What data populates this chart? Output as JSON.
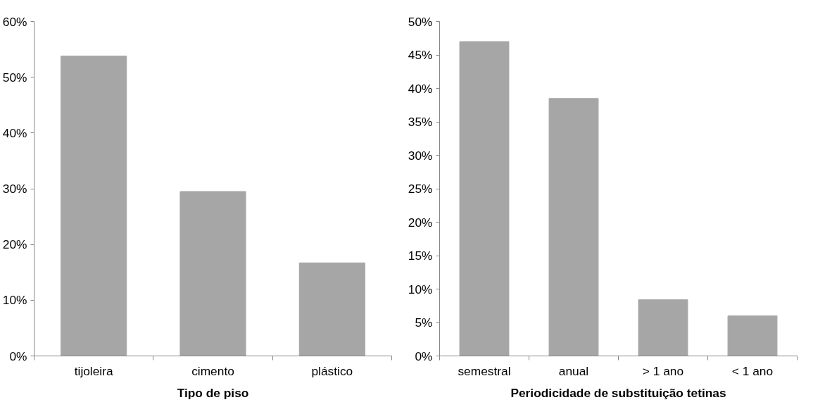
{
  "chart_data": [
    {
      "type": "bar",
      "xlabel": "Tipo de piso",
      "categories": [
        "tijoleira",
        "cimento",
        "plástico"
      ],
      "values": [
        53.8,
        29.5,
        16.7
      ],
      "color": "#a6a6a6",
      "ylim": [
        0,
        60
      ],
      "yticks": [
        {
          "value": 0,
          "label": "0%"
        },
        {
          "value": 10,
          "label": "10%"
        },
        {
          "value": 20,
          "label": "20%"
        },
        {
          "value": 30,
          "label": "30%"
        },
        {
          "value": 40,
          "label": "40%"
        },
        {
          "value": 50,
          "label": "50%"
        },
        {
          "value": 60,
          "label": "60%"
        }
      ],
      "grid": false
    },
    {
      "type": "bar",
      "xlabel": "Periodicidade de substituição tetinas",
      "categories": [
        "semestral",
        "anual",
        "> 1 ano",
        "< 1 ano"
      ],
      "values": [
        47.0,
        38.5,
        8.4,
        6.0
      ],
      "color": "#a6a6a6",
      "ylim": [
        0,
        50
      ],
      "yticks": [
        {
          "value": 0,
          "label": "0%"
        },
        {
          "value": 5,
          "label": "5%"
        },
        {
          "value": 10,
          "label": "10%"
        },
        {
          "value": 15,
          "label": "15%"
        },
        {
          "value": 20,
          "label": "20%"
        },
        {
          "value": 25,
          "label": "25%"
        },
        {
          "value": 30,
          "label": "30%"
        },
        {
          "value": 35,
          "label": "35%"
        },
        {
          "value": 40,
          "label": "40%"
        },
        {
          "value": 45,
          "label": "45%"
        },
        {
          "value": 50,
          "label": "50%"
        }
      ],
      "grid": false
    }
  ]
}
